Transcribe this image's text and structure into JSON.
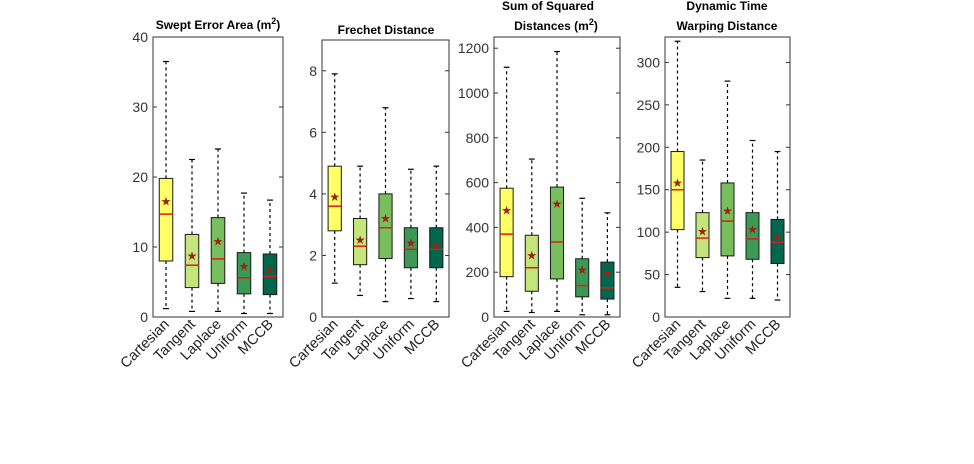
{
  "chart_data": [
    {
      "type": "boxplot",
      "title": "Swept Error Area (m",
      "title_sup": "2",
      "title_suffix": ")",
      "categories": [
        "Cartesian",
        "Tangent",
        "Laplace",
        "Uniform",
        "MCCB"
      ],
      "ylim": [
        0,
        40
      ],
      "yticks": [
        0,
        10,
        20,
        30,
        40
      ],
      "ytick_labels": [
        "0",
        "10",
        "20",
        "30",
        "40"
      ],
      "boxes": [
        {
          "whisker_low": 1.2,
          "q1": 8.0,
          "median": 14.7,
          "q3": 19.8,
          "whisker_high": 36.5,
          "mean": 16.5
        },
        {
          "whisker_low": 0.8,
          "q1": 4.2,
          "median": 7.4,
          "q3": 11.8,
          "whisker_high": 22.5,
          "mean": 8.7
        },
        {
          "whisker_low": 0.8,
          "q1": 4.8,
          "median": 8.3,
          "q3": 14.2,
          "whisker_high": 24.0,
          "mean": 10.8
        },
        {
          "whisker_low": 0.5,
          "q1": 3.3,
          "median": 5.6,
          "q3": 9.2,
          "whisker_high": 17.7,
          "mean": 7.2
        },
        {
          "whisker_low": 0.5,
          "q1": 3.2,
          "median": 5.8,
          "q3": 9.0,
          "whisker_high": 16.7,
          "mean": 6.7
        }
      ]
    },
    {
      "type": "boxplot",
      "title": "Frechet Distance",
      "categories": [
        "Cartesian",
        "Tangent",
        "Laplace",
        "Uniform",
        "MCCB"
      ],
      "ylim": [
        0,
        9
      ],
      "yticks": [
        0,
        2,
        4,
        6,
        8
      ],
      "ytick_labels": [
        "0",
        "2",
        "4",
        "6",
        "8"
      ],
      "boxes": [
        {
          "whisker_low": 1.1,
          "q1": 2.8,
          "median": 3.6,
          "q3": 4.9,
          "whisker_high": 7.9,
          "mean": 3.9
        },
        {
          "whisker_low": 0.7,
          "q1": 1.7,
          "median": 2.3,
          "q3": 3.2,
          "whisker_high": 4.9,
          "mean": 2.5
        },
        {
          "whisker_low": 0.5,
          "q1": 1.9,
          "median": 2.9,
          "q3": 4.0,
          "whisker_high": 6.8,
          "mean": 3.2
        },
        {
          "whisker_low": 0.6,
          "q1": 1.6,
          "median": 2.2,
          "q3": 2.9,
          "whisker_high": 4.8,
          "mean": 2.4
        },
        {
          "whisker_low": 0.5,
          "q1": 1.6,
          "median": 2.2,
          "q3": 2.9,
          "whisker_high": 4.9,
          "mean": 2.3
        }
      ]
    },
    {
      "type": "boxplot",
      "title": "Sum of Squared",
      "title_line2": "Distances (m",
      "title_sup": "2",
      "title_suffix": ")",
      "categories": [
        "Cartesian",
        "Tangent",
        "Laplace",
        "Uniform",
        "MCCB"
      ],
      "ylim": [
        0,
        1250
      ],
      "yticks": [
        0,
        200,
        400,
        600,
        800,
        1000,
        1200
      ],
      "ytick_labels": [
        "0",
        "200",
        "400",
        "600",
        "800",
        "1000",
        "1200"
      ],
      "boxes": [
        {
          "whisker_low": 25,
          "q1": 180,
          "median": 370,
          "q3": 575,
          "whisker_high": 1115,
          "mean": 475
        },
        {
          "whisker_low": 20,
          "q1": 115,
          "median": 220,
          "q3": 365,
          "whisker_high": 705,
          "mean": 275
        },
        {
          "whisker_low": 25,
          "q1": 170,
          "median": 335,
          "q3": 580,
          "whisker_high": 1185,
          "mean": 505
        },
        {
          "whisker_low": 10,
          "q1": 90,
          "median": 140,
          "q3": 260,
          "whisker_high": 530,
          "mean": 210
        },
        {
          "whisker_low": 10,
          "q1": 80,
          "median": 130,
          "q3": 245,
          "whisker_high": 465,
          "mean": 195
        }
      ]
    },
    {
      "type": "boxplot",
      "title": "Dynamic Time",
      "title_line2": "Warping Distance",
      "categories": [
        "Cartesian",
        "Tangent",
        "Laplace",
        "Uniform",
        "MCCB"
      ],
      "ylim": [
        0,
        330
      ],
      "yticks": [
        0,
        50,
        100,
        150,
        200,
        250,
        300
      ],
      "ytick_labels": [
        "0",
        "50",
        "100",
        "150",
        "200",
        "250",
        "300"
      ],
      "boxes": [
        {
          "whisker_low": 35,
          "q1": 103,
          "median": 150,
          "q3": 195,
          "whisker_high": 325,
          "mean": 158
        },
        {
          "whisker_low": 30,
          "q1": 70,
          "median": 93,
          "q3": 123,
          "whisker_high": 185,
          "mean": 101
        },
        {
          "whisker_low": 22,
          "q1": 72,
          "median": 113,
          "q3": 158,
          "whisker_high": 278,
          "mean": 125
        },
        {
          "whisker_low": 22,
          "q1": 68,
          "median": 92,
          "q3": 123,
          "whisker_high": 208,
          "mean": 103
        },
        {
          "whisker_low": 20,
          "q1": 63,
          "median": 88,
          "q3": 115,
          "whisker_high": 195,
          "mean": 95
        }
      ]
    }
  ],
  "colors": {
    "box_fills": [
      "#ffff66",
      "#c3e57c",
      "#76bf5c",
      "#3a9a55",
      "#00664d"
    ],
    "median": "#e01b1b",
    "mean_marker": "#a02010",
    "axis": "#333333",
    "whisker": "#000000"
  }
}
